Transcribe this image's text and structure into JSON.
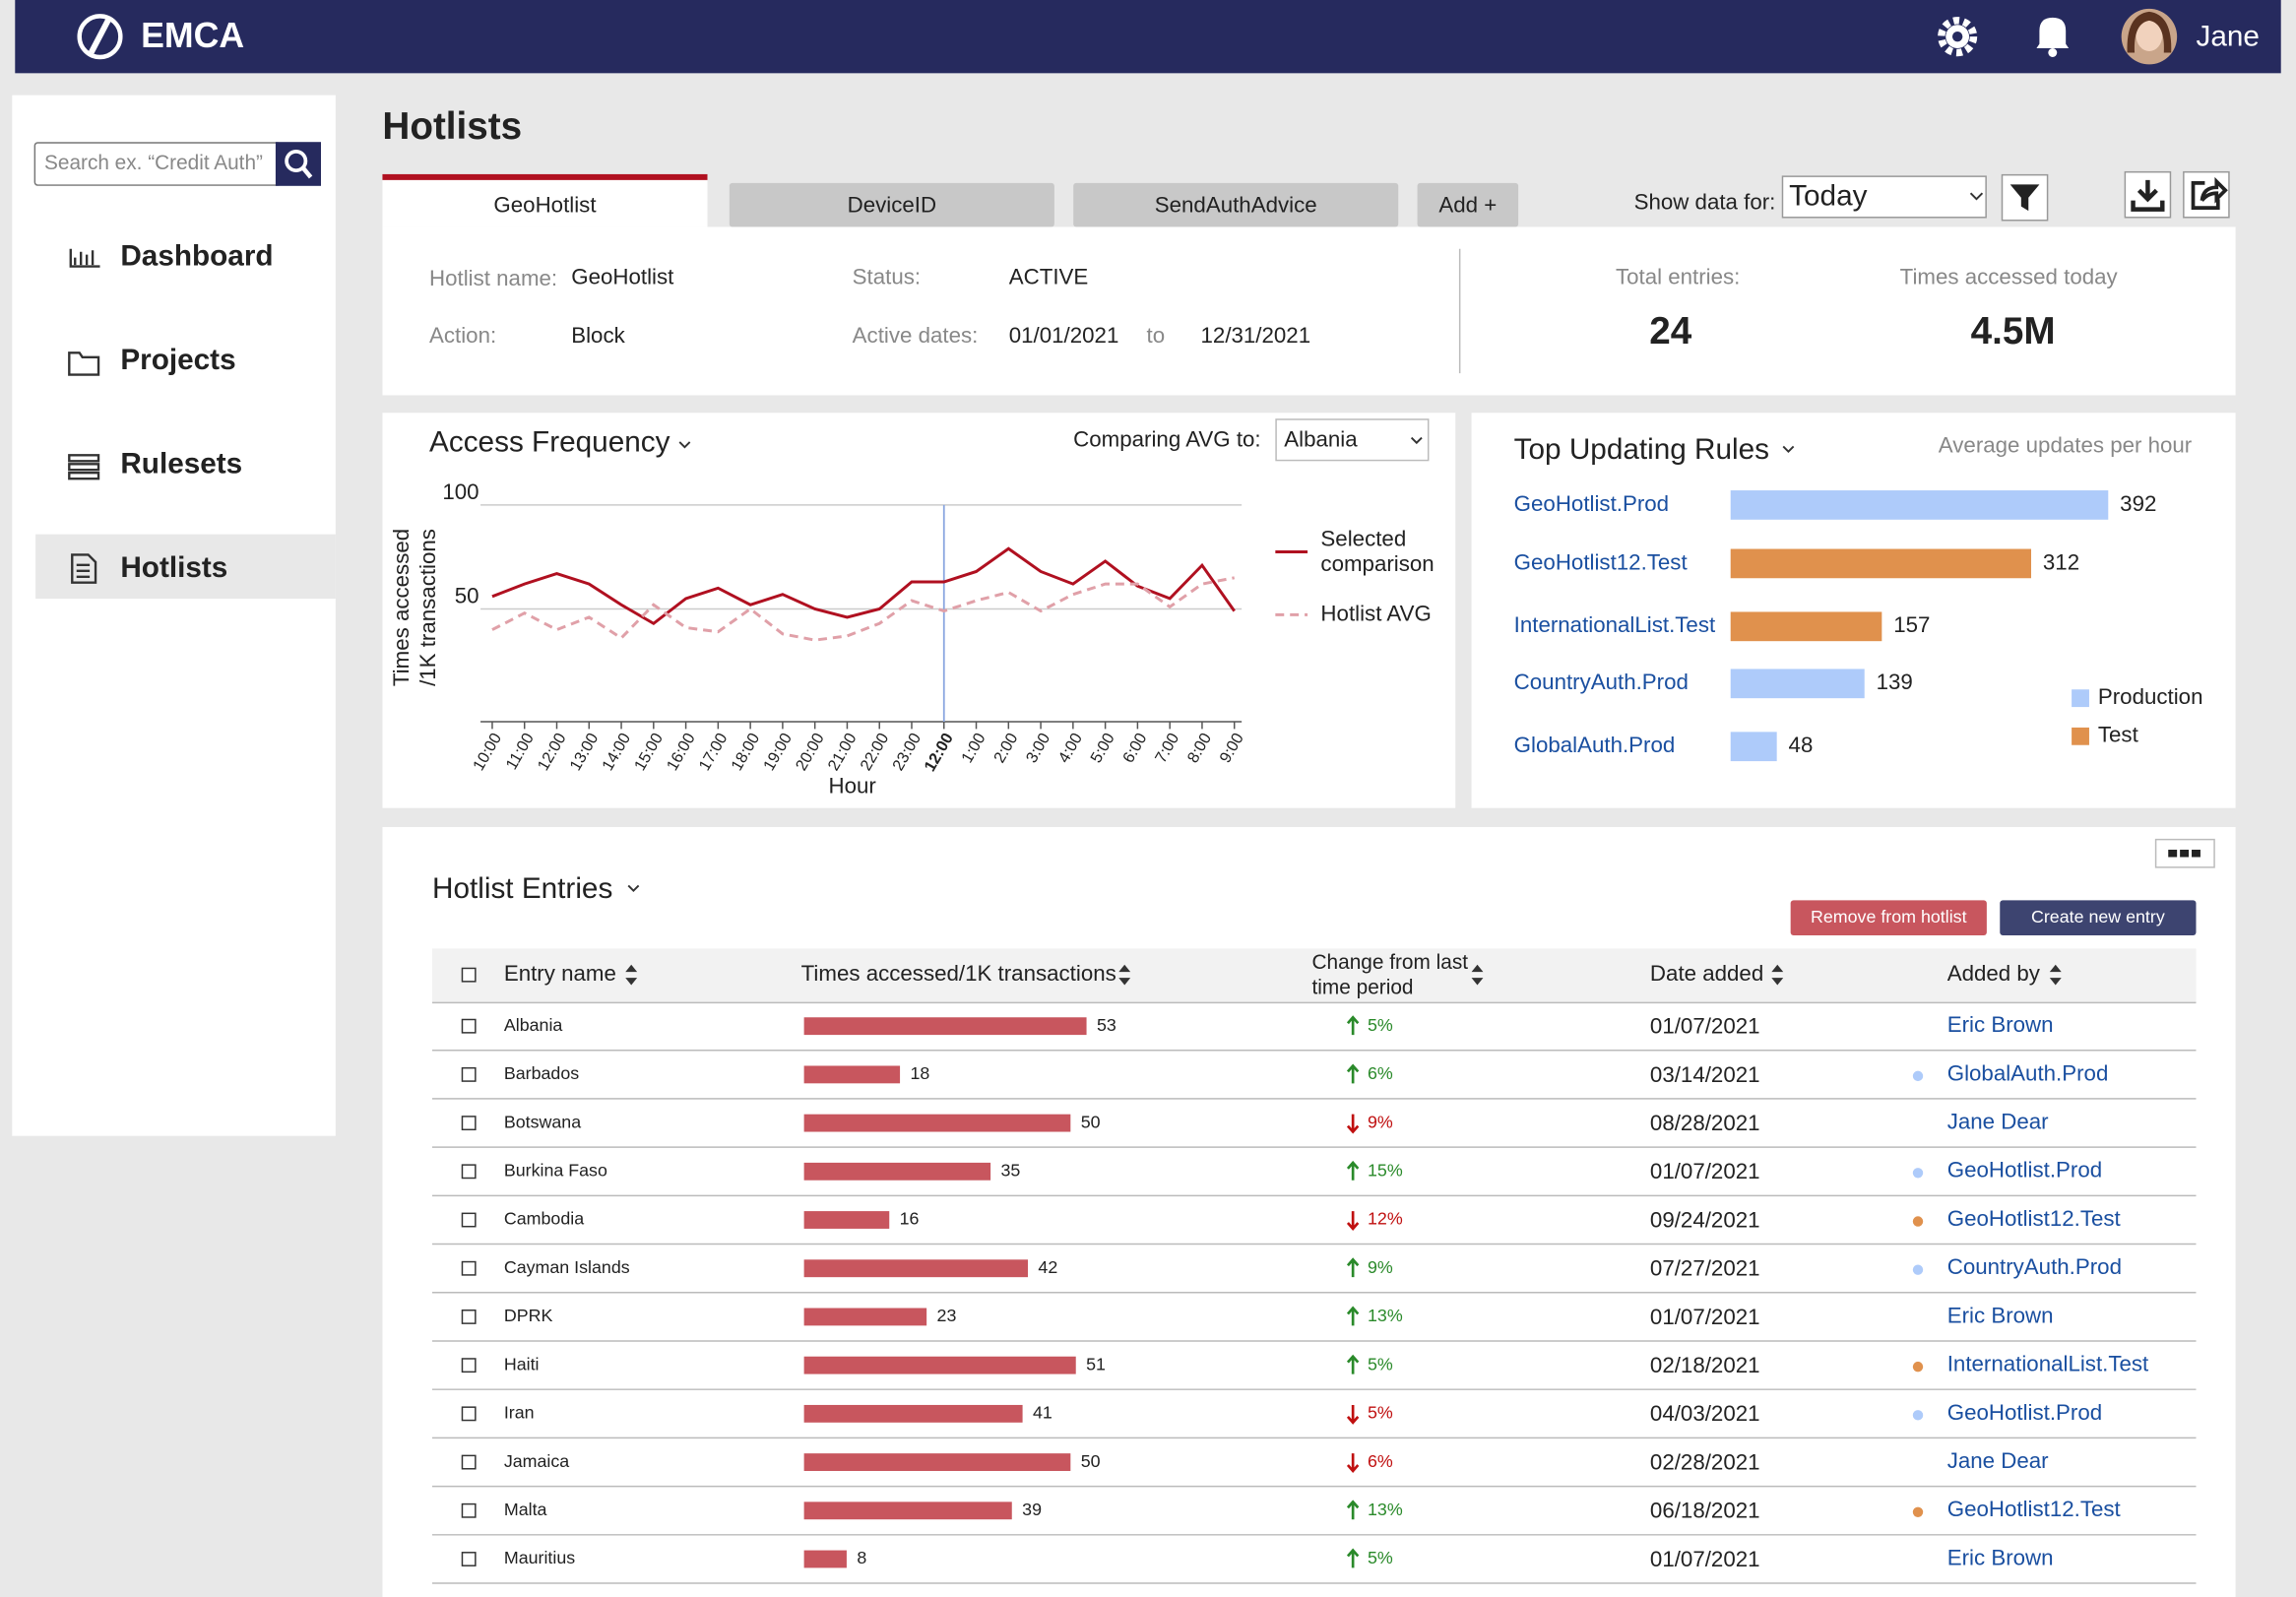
{
  "header": {
    "brand": "EMCA",
    "user": "Jane"
  },
  "sidebar": {
    "search_placeholder": "Search ex. “Credit Auth”",
    "nav": [
      "Dashboard",
      "Projects",
      "Rulesets",
      "Hotlists"
    ],
    "active": 3
  },
  "page": {
    "title": "Hotlists",
    "tabs": [
      "GeoHotlist",
      "DeviceID",
      "SendAuthAdvice",
      "Add +"
    ],
    "active_tab": 0,
    "show_data_label": "Show data for:",
    "show_data_value": "Today"
  },
  "summary": {
    "name_label": "Hotlist name:",
    "name": "GeoHotlist",
    "action_label": "Action:",
    "action": "Block",
    "status_label": "Status:",
    "status": "ACTIVE",
    "dates_label": "Active dates:",
    "date_from": "01/01/2021",
    "date_sep": "to",
    "date_to": "12/31/2021",
    "total_label": "Total entries:",
    "total": 24,
    "accessed_label": "Times accessed today",
    "accessed": "4.5M"
  },
  "access_frequency": {
    "type": "line",
    "title": "Access Frequency",
    "compare_label": "Comparing AVG to:",
    "compare_value": "Albania",
    "y_label": [
      "Times accessed",
      "/1K transactions"
    ],
    "x_label": "Hour",
    "categories": [
      "10:00",
      "11:00",
      "12:00",
      "13:00",
      "14:00",
      "15:00",
      "16:00",
      "17:00",
      "18:00",
      "19:00",
      "20:00",
      "21:00",
      "22:00",
      "23:00",
      "12:00",
      "1:00",
      "2:00",
      "3:00",
      "4:00",
      "5:00",
      "6:00",
      "7:00",
      "8:00",
      "9:00"
    ],
    "highlight": 14,
    "ylim": [
      0,
      100
    ],
    "yticks": [
      50,
      100
    ],
    "grid": true,
    "series": [
      {
        "name": "Selected comparison",
        "color": "#b01020",
        "dash": false,
        "values": [
          56,
          62,
          67,
          62,
          52,
          43,
          55,
          60,
          52,
          57,
          50,
          46,
          50,
          63,
          63,
          68,
          79,
          68,
          62,
          73,
          61,
          55,
          71,
          49
        ]
      },
      {
        "name": "Hotlist AVG",
        "color": "#e0a0a8",
        "dash": true,
        "values": [
          40,
          48,
          40,
          46,
          36,
          52,
          41,
          39,
          50,
          38,
          35,
          37,
          43,
          54,
          49,
          54,
          58,
          49,
          57,
          62,
          62,
          51,
          62,
          65
        ]
      }
    ]
  },
  "top_rules": {
    "type": "bar",
    "title": "Top Updating Rules",
    "subtitle": "Average updates per hour",
    "categories": [
      "GeoHotlist.Prod",
      "GeoHotlist12.Test",
      "InternationalList.Test",
      "CountryAuth.Prod",
      "GlobalAuth.Prod"
    ],
    "values": [
      392,
      312,
      157,
      139,
      48
    ],
    "groups": [
      "Production",
      "Test",
      "Test",
      "Production",
      "Production"
    ],
    "legend": [
      {
        "name": "Production",
        "color": "#aecbfa"
      },
      {
        "name": "Test",
        "color": "#e0914d"
      }
    ]
  },
  "entries": {
    "title": "Hotlist Entries",
    "actions": [
      "Remove from hotlist",
      "Create new entry"
    ],
    "columns": [
      "Entry name",
      "Times accessed/1K transactions",
      "Change from last time period",
      "Date added",
      "Added by"
    ],
    "bar_color": "#c8565e",
    "rows": [
      {
        "name": "Albania",
        "times": 53,
        "change": "5%",
        "trend": "up",
        "date": "01/07/2021",
        "added_by": "Eric Brown"
      },
      {
        "name": "Barbados",
        "times": 18,
        "change": "6%",
        "trend": "up",
        "date": "03/14/2021",
        "added_by": "GlobalAuth.Prod",
        "source": "Production"
      },
      {
        "name": "Botswana",
        "times": 50,
        "change": "9%",
        "trend": "down",
        "date": "08/28/2021",
        "added_by": "Jane Dear"
      },
      {
        "name": "Burkina Faso",
        "times": 35,
        "change": "15%",
        "trend": "up",
        "date": "01/07/2021",
        "added_by": "GeoHotlist.Prod",
        "source": "Production"
      },
      {
        "name": "Cambodia",
        "times": 16,
        "change": "12%",
        "trend": "down",
        "date": "09/24/2021",
        "added_by": "GeoHotlist12.Test",
        "source": "Test"
      },
      {
        "name": "Cayman Islands",
        "times": 42,
        "change": "9%",
        "trend": "up",
        "date": "07/27/2021",
        "added_by": "CountryAuth.Prod",
        "source": "Production"
      },
      {
        "name": "DPRK",
        "times": 23,
        "change": "13%",
        "trend": "up",
        "date": "01/07/2021",
        "added_by": "Eric Brown"
      },
      {
        "name": "Haiti",
        "times": 51,
        "change": "5%",
        "trend": "up",
        "date": "02/18/2021",
        "added_by": "InternationalList.Test",
        "source": "Test"
      },
      {
        "name": "Iran",
        "times": 41,
        "change": "5%",
        "trend": "down",
        "date": "04/03/2021",
        "added_by": "GeoHotlist.Prod",
        "source": "Production"
      },
      {
        "name": "Jamaica",
        "times": 50,
        "change": "6%",
        "trend": "down",
        "date": "02/28/2021",
        "added_by": "Jane Dear"
      },
      {
        "name": "Malta",
        "times": 39,
        "change": "13%",
        "trend": "up",
        "date": "06/18/2021",
        "added_by": "GeoHotlist12.Test",
        "source": "Test"
      },
      {
        "name": "Mauritius",
        "times": 8,
        "change": "5%",
        "trend": "up",
        "date": "01/07/2021",
        "added_by": "Eric Brown"
      }
    ]
  }
}
